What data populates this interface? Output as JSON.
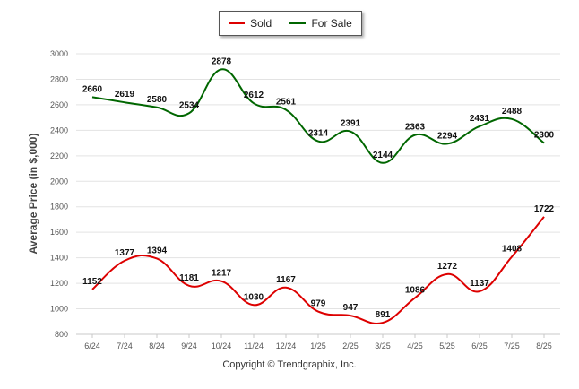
{
  "legend": {
    "items": [
      {
        "label": "Sold",
        "color": "#dd0000"
      },
      {
        "label": "For Sale",
        "color": "#006600"
      }
    ]
  },
  "footer": {
    "copyright": "Copyright © Trendgraphix, Inc."
  },
  "chart_data": {
    "type": "line",
    "title": "",
    "xlabel": "",
    "ylabel": "Average Price (in $,000)",
    "ylim": [
      800,
      3000
    ],
    "yticks": [
      800,
      1000,
      1200,
      1400,
      1600,
      1800,
      2000,
      2200,
      2400,
      2600,
      2800,
      3000
    ],
    "grid": true,
    "legend_position": "top-center",
    "categories": [
      "6/24",
      "7/24",
      "8/24",
      "9/24",
      "10/24",
      "11/24",
      "12/24",
      "1/25",
      "2/25",
      "3/25",
      "4/25",
      "5/25",
      "6/25",
      "7/25",
      "8/25"
    ],
    "series": [
      {
        "name": "Sold",
        "color": "#dd0000",
        "values": [
          1152,
          1377,
          1394,
          1181,
          1217,
          1030,
          1167,
          979,
          947,
          891,
          1086,
          1272,
          1137,
          1408,
          1722
        ]
      },
      {
        "name": "For Sale",
        "color": "#006600",
        "values": [
          2660,
          2619,
          2580,
          2534,
          2878,
          2612,
          2561,
          2314,
          2391,
          2144,
          2363,
          2294,
          2431,
          2488,
          2300
        ]
      }
    ]
  }
}
